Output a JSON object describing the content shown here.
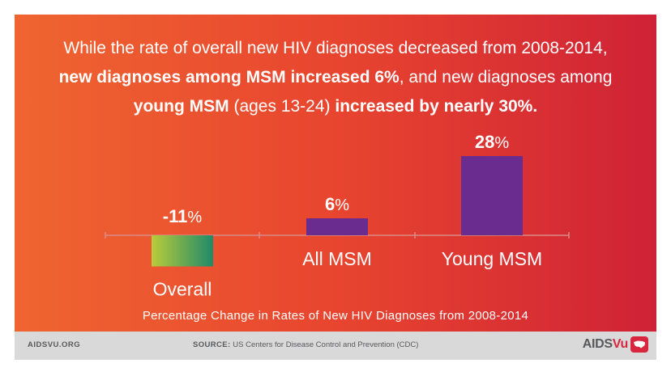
{
  "headline": {
    "line1": "While the rate of overall new HIV diagnoses decreased from 2008-2014,",
    "line2_bold": "new diagnoses among MSM increased 6%",
    "line2_rest": ", and new diagnoses among",
    "line3_bold1": "young MSM",
    "line3_mid": " (ages 13-24) ",
    "line3_bold2": "increased by nearly 30%."
  },
  "chart_data": {
    "type": "bar",
    "categories": [
      "Overall",
      "All MSM",
      "Young MSM"
    ],
    "values": [
      -11,
      6,
      28
    ],
    "value_labels": [
      {
        "num": "-11",
        "unit": "%"
      },
      {
        "num": "6",
        "unit": "%"
      },
      {
        "num": "28",
        "unit": "%"
      }
    ],
    "xlabel": "Percentage Change in Rates of New HIV Diagnoses from 2008-2014",
    "ylabel": "",
    "ylim": [
      -11,
      28
    ],
    "grid": false,
    "legend": "none",
    "colors": {
      "positive": "#6a2c8e",
      "negative_gradient": [
        "#b9cc3a",
        "#1f8a6a"
      ],
      "axis": "#d88b85",
      "background": [
        "#ef6530",
        "#e8452f",
        "#cf2236"
      ]
    }
  },
  "footer": {
    "site": "AIDSVU.ORG",
    "source_label": "SOURCE:",
    "source_text": " US Centers for Disease Control and Prevention (CDC)",
    "brand_main": "AIDS",
    "brand_accent": "Vu",
    "background": "#d9d9d9",
    "badge_color": "#d7263d",
    "badge_icon": "us-map-icon"
  }
}
